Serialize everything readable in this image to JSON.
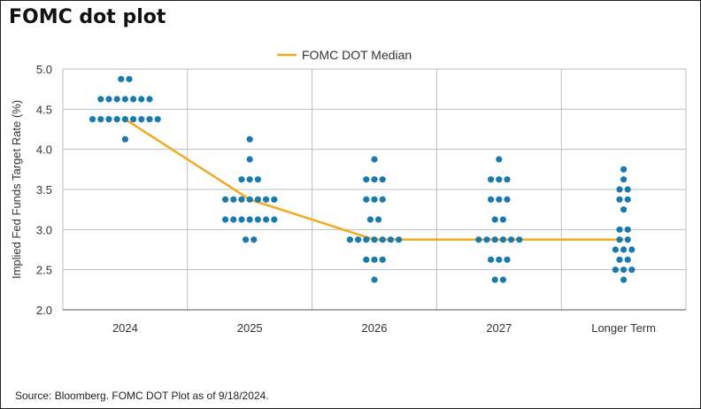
{
  "title": "FOMC dot plot",
  "source": "Source: Bloomberg. FOMC DOT Plot as of 9/18/2024.",
  "colors": {
    "dots": "#1a7aac",
    "median": "#f2a91f",
    "grid": "#b8bec4",
    "axis": "#555555"
  },
  "chart_data": {
    "type": "scatter",
    "title": "FOMC dot plot",
    "xlabel": "",
    "ylabel": "Implied Fed Funds Target Rate (%)",
    "categories": [
      "2024",
      "2025",
      "2026",
      "2027",
      "Longer Term"
    ],
    "ylim": [
      2.0,
      5.0
    ],
    "yticks": [
      "2.0",
      "2.5",
      "3.0",
      "3.5",
      "4.0",
      "4.5",
      "5.0"
    ],
    "grid": true,
    "legend": {
      "position": "top-center",
      "entries": [
        "FOMC DOT Median"
      ]
    },
    "dots": [
      {
        "category": "2024",
        "rows": [
          {
            "y": 4.875,
            "n": 2
          },
          {
            "y": 4.625,
            "n": 7
          },
          {
            "y": 4.375,
            "n": 9
          },
          {
            "y": 4.125,
            "n": 1
          }
        ]
      },
      {
        "category": "2025",
        "rows": [
          {
            "y": 4.125,
            "n": 1
          },
          {
            "y": 3.875,
            "n": 1
          },
          {
            "y": 3.625,
            "n": 3
          },
          {
            "y": 3.375,
            "n": 7
          },
          {
            "y": 3.125,
            "n": 7
          },
          {
            "y": 2.875,
            "n": 2
          }
        ]
      },
      {
        "category": "2026",
        "rows": [
          {
            "y": 3.875,
            "n": 1
          },
          {
            "y": 3.625,
            "n": 3
          },
          {
            "y": 3.375,
            "n": 3
          },
          {
            "y": 3.125,
            "n": 2
          },
          {
            "y": 2.875,
            "n": 7
          },
          {
            "y": 2.625,
            "n": 3
          },
          {
            "y": 2.375,
            "n": 1
          }
        ]
      },
      {
        "category": "2027",
        "rows": [
          {
            "y": 3.875,
            "n": 1
          },
          {
            "y": 3.625,
            "n": 3
          },
          {
            "y": 3.375,
            "n": 3
          },
          {
            "y": 3.125,
            "n": 2
          },
          {
            "y": 2.875,
            "n": 6
          },
          {
            "y": 2.625,
            "n": 3
          },
          {
            "y": 2.375,
            "n": 2
          }
        ]
      },
      {
        "category": "Longer Term",
        "rows": [
          {
            "y": 3.75,
            "n": 1
          },
          {
            "y": 3.625,
            "n": 1
          },
          {
            "y": 3.5,
            "n": 2
          },
          {
            "y": 3.375,
            "n": 2
          },
          {
            "y": 3.25,
            "n": 1
          },
          {
            "y": 3.0,
            "n": 2
          },
          {
            "y": 2.875,
            "n": 2
          },
          {
            "y": 2.75,
            "n": 3
          },
          {
            "y": 2.625,
            "n": 2
          },
          {
            "y": 2.5,
            "n": 3
          },
          {
            "y": 2.375,
            "n": 1
          }
        ]
      }
    ],
    "series": [
      {
        "name": "FOMC DOT Median",
        "values": [
          4.375,
          3.375,
          2.875,
          2.875,
          2.875
        ]
      }
    ]
  }
}
